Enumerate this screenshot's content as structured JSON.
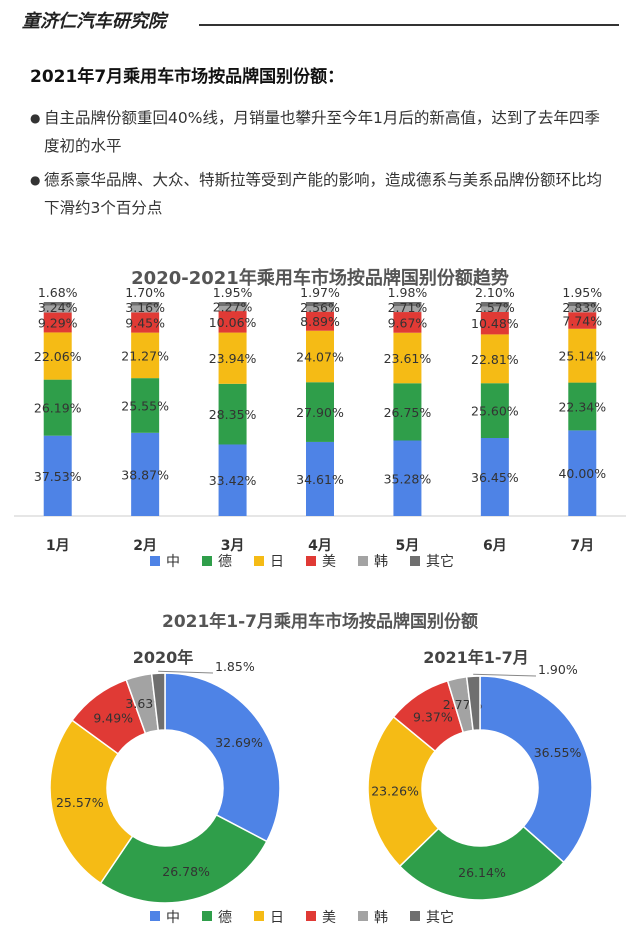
{
  "header": {
    "brand": "童济仁汽车研究院"
  },
  "section": {
    "title": "2021年7月乘用车市场按品牌国别份额：",
    "bullets": [
      "自主品牌份额重回40%线，月销量也攀升至今年1月后的新高值，达到了去年四季度初的水平",
      "德系豪华品牌、大众、特斯拉等受到产能的影响，造成德系与美系品牌份额环比均下滑约3个百分点"
    ]
  },
  "colors": {
    "中": "#4e83e6",
    "德": "#2f9e4a",
    "日": "#f5bb15",
    "美": "#e03a35",
    "韩": "#a3a3a3",
    "其它": "#6f6f6f"
  },
  "chart_data": [
    {
      "type": "bar",
      "stacked": true,
      "title": "2020-2021年乘用车市场按品牌国别份额趋势",
      "categories": [
        "1月",
        "2月",
        "3月",
        "4月",
        "5月",
        "6月",
        "7月"
      ],
      "series": [
        {
          "name": "中",
          "values": [
            37.53,
            38.87,
            33.42,
            34.61,
            35.28,
            36.45,
            40.0
          ],
          "labels": [
            "37.53%",
            "38.87%",
            "33.42%",
            "34.61%",
            "35.28%",
            "36.45%",
            "40.00%"
          ]
        },
        {
          "name": "德",
          "values": [
            26.19,
            25.55,
            28.35,
            27.9,
            26.75,
            25.6,
            22.34
          ],
          "labels": [
            "26.19%",
            "25.55%",
            "28.35%",
            "27.90%",
            "26.75%",
            "25.60%",
            "22.34%"
          ]
        },
        {
          "name": "日",
          "values": [
            22.06,
            21.27,
            23.94,
            24.07,
            23.61,
            22.81,
            25.14
          ],
          "labels": [
            "22.06%",
            "21.27%",
            "23.94%",
            "24.07%",
            "23.61%",
            "22.81%",
            "25.14%"
          ]
        },
        {
          "name": "美",
          "values": [
            9.29,
            9.45,
            10.06,
            8.89,
            9.67,
            10.48,
            7.74
          ],
          "labels": [
            "9.29%",
            "9.45%",
            "10.06%",
            "8.89%",
            "9.67%",
            "10.48%",
            "7.74%"
          ]
        },
        {
          "name": "韩",
          "values": [
            3.24,
            3.16,
            2.27,
            2.56,
            2.71,
            2.57,
            2.83
          ],
          "labels": [
            "3.24%",
            "3.16%",
            "2.27%",
            "2.56%",
            "2.71%",
            "2.57%",
            "2.83%"
          ]
        },
        {
          "name": "其它",
          "values": [
            1.68,
            1.7,
            1.95,
            1.97,
            1.98,
            2.1,
            1.95
          ],
          "labels": [
            "1.68%",
            "1.70%",
            "1.95%",
            "1.97%",
            "1.98%",
            "2.10%",
            "1.95%"
          ]
        }
      ],
      "legend": [
        "中",
        "德",
        "日",
        "美",
        "韩",
        "其它"
      ],
      "legend_position": "bottom",
      "ylim": [
        0,
        100
      ]
    },
    {
      "type": "pie",
      "donut": true,
      "title": "2021年1-7月乘用车市场按品牌国别份额",
      "subtitle": "2020年",
      "slices": [
        {
          "name": "中",
          "value": 32.69,
          "label": "32.69%"
        },
        {
          "name": "德",
          "value": 26.78,
          "label": "26.78%"
        },
        {
          "name": "日",
          "value": 25.57,
          "label": "25.57%"
        },
        {
          "name": "美",
          "value": 9.49,
          "label": "9.49%"
        },
        {
          "name": "韩",
          "value": 3.63,
          "label": "3.63%"
        },
        {
          "name": "其它",
          "value": 1.85,
          "label": "1.85%"
        }
      ]
    },
    {
      "type": "pie",
      "donut": true,
      "title": "2021年1-7月乘用车市场按品牌国别份额",
      "subtitle": "2021年1-7月",
      "slices": [
        {
          "name": "中",
          "value": 36.55,
          "label": "36.55%"
        },
        {
          "name": "德",
          "value": 26.14,
          "label": "26.14%"
        },
        {
          "name": "日",
          "value": 23.26,
          "label": "23.26%"
        },
        {
          "name": "美",
          "value": 9.37,
          "label": "9.37%"
        },
        {
          "name": "韩",
          "value": 2.77,
          "label": "2.77%"
        },
        {
          "name": "其它",
          "value": 1.9,
          "label": "1.90%"
        }
      ],
      "legend": [
        "中",
        "德",
        "日",
        "美",
        "韩",
        "其它"
      ],
      "legend_position": "bottom"
    }
  ]
}
